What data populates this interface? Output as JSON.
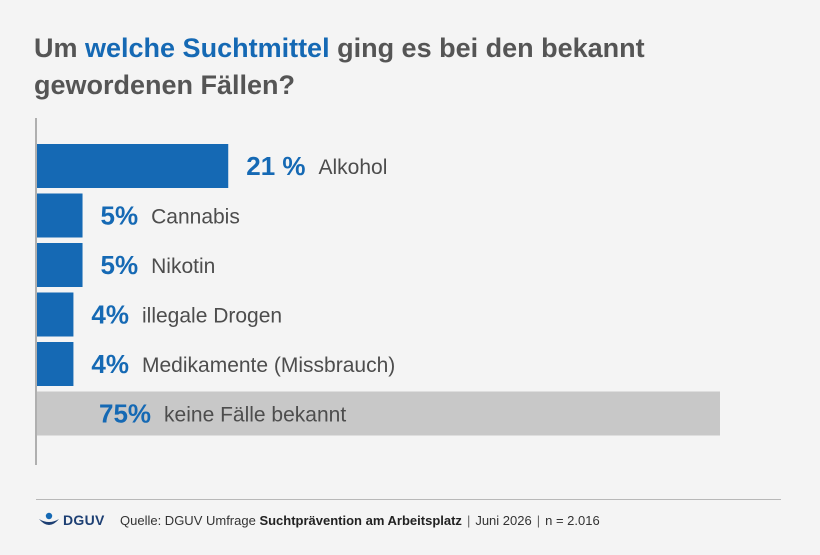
{
  "title": {
    "part1": "Um ",
    "highlight": "welche Suchtmittel",
    "part2": " ging es bei den bekannt gewordenen Fällen?"
  },
  "colors": {
    "accent": "#1569b4",
    "other": "#c8c8c8",
    "text": "#4d4d4d",
    "axis": "#8a8a8a"
  },
  "chart_data": {
    "type": "bar",
    "orientation": "horizontal",
    "categories": [
      "Alkohol",
      "Cannabis",
      "Nikotin",
      "illegale Drogen",
      "Medikamente (Missbrauch)",
      "keine Fälle bekannt"
    ],
    "values": [
      21,
      5,
      5,
      4,
      4,
      75
    ],
    "value_labels": [
      "21 %",
      "5%",
      "5%",
      "4%",
      "4%",
      "75%"
    ],
    "highlight_last": true,
    "unit": "%",
    "xlim": [
      0,
      75
    ],
    "grid": false,
    "legend": "none"
  },
  "footer": {
    "logo_text": "DGUV",
    "source_prefix": "Quelle: DGUV Umfrage ",
    "source_bold": "Suchtprävention am Arbeitsplatz",
    "date": "Juni 2026",
    "n": "n = 2.016",
    "separator": "|"
  }
}
